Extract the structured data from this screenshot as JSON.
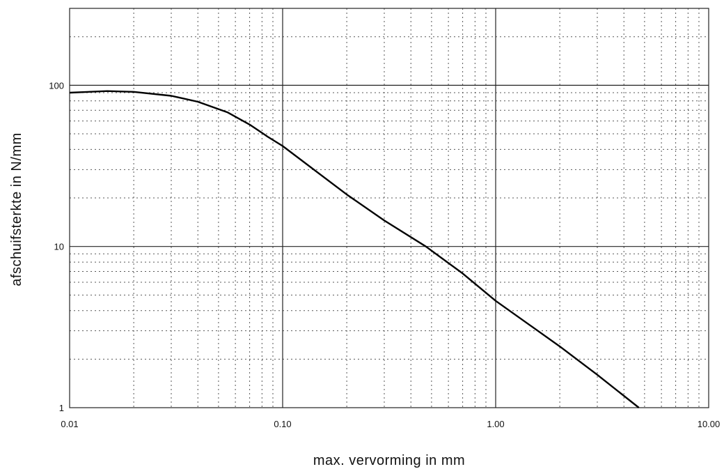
{
  "chart_data": {
    "type": "line",
    "title": "",
    "xlabel": "max. vervorming in mm",
    "ylabel": "afschuifsterkte in N/mm",
    "xscale": "log",
    "yscale": "log",
    "xlim": [
      0.01,
      10
    ],
    "ylim": [
      1,
      300
    ],
    "x_ticks": [
      {
        "value": 0.01,
        "label": "0.01"
      },
      {
        "value": 0.1,
        "label": "0.10"
      },
      {
        "value": 1,
        "label": "1.00"
      },
      {
        "value": 10,
        "label": "10.00"
      }
    ],
    "y_ticks": [
      {
        "value": 1,
        "label": "1"
      },
      {
        "value": 10,
        "label": "10"
      },
      {
        "value": 100,
        "label": "100"
      }
    ],
    "grid": "major solid, minor dotted",
    "legend": "none",
    "series": [
      {
        "color": "#000000",
        "x": [
          0.01,
          0.015,
          0.02,
          0.03,
          0.04,
          0.055,
          0.07,
          0.085,
          0.1,
          0.2,
          0.3,
          0.47,
          0.7,
          1.0,
          2.0,
          3.0,
          4.7
        ],
        "y": [
          90,
          92,
          91,
          86,
          79,
          68,
          57,
          48,
          42,
          21,
          14.5,
          10,
          6.8,
          4.6,
          2.4,
          1.6,
          1.0
        ]
      }
    ]
  }
}
